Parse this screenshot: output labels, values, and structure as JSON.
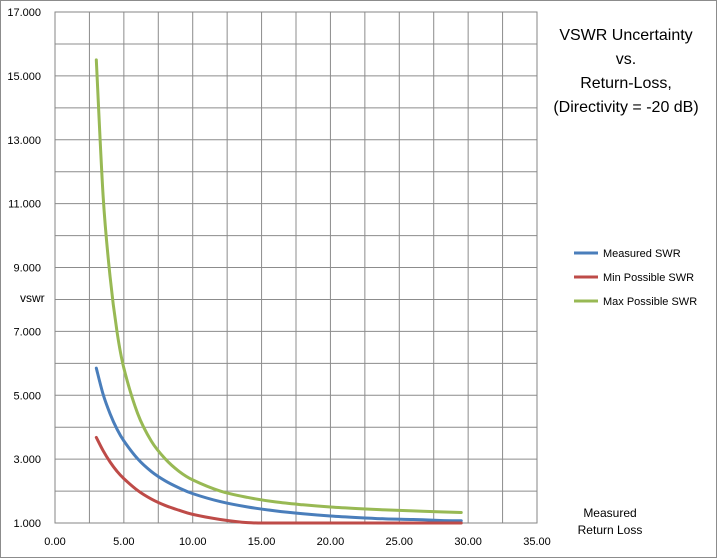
{
  "chart_data": {
    "type": "line",
    "title": [
      "VSWR Uncertainty",
      "vs.",
      "Return-Loss,",
      "(Directivity = -20 dB)"
    ],
    "xlabel": [
      "Measured",
      "Return Loss"
    ],
    "ylabel": "vswr",
    "xlim": [
      0,
      35
    ],
    "ylim": [
      1,
      17
    ],
    "x_ticks": [
      "0.00",
      "5.00",
      "10.00",
      "15.00",
      "20.00",
      "25.00",
      "30.00",
      "35.00"
    ],
    "y_ticks": [
      "1.000",
      "3.000",
      "5.000",
      "7.000",
      "9.000",
      "11.000",
      "13.000",
      "15.000",
      "17.000"
    ],
    "x_tick_values": [
      0,
      5,
      10,
      15,
      20,
      25,
      30,
      35
    ],
    "y_tick_values": [
      1,
      3,
      5,
      7,
      9,
      11,
      13,
      15,
      17
    ],
    "x_minor_step": 2.5,
    "y_minor_step": 1,
    "legend_position": "right",
    "x": [
      3,
      3.5,
      4,
      4.5,
      5,
      6,
      7,
      8,
      9,
      10,
      12,
      14,
      16,
      18,
      20,
      22,
      24,
      26,
      28,
      29.5
    ],
    "series": [
      {
        "name": "Measured SWR",
        "color": "#4A7EBB",
        "values": [
          5.85,
          5.02,
          4.42,
          3.94,
          3.57,
          3.01,
          2.61,
          2.32,
          2.1,
          1.92,
          1.67,
          1.5,
          1.38,
          1.29,
          1.22,
          1.17,
          1.13,
          1.11,
          1.08,
          1.07
        ]
      },
      {
        "name": "Min Possible SWR",
        "color": "#BE4B48",
        "values": [
          3.68,
          3.26,
          2.91,
          2.62,
          2.39,
          2.02,
          1.75,
          1.55,
          1.4,
          1.27,
          1.11,
          1.01,
          1.0,
          1.0,
          1.0,
          1.0,
          1.0,
          1.0,
          1.0,
          1.0
        ]
      },
      {
        "name": "Max Possible SWR",
        "color": "#98B954",
        "values": [
          15.5,
          11.2,
          8.71,
          7.0,
          5.85,
          4.43,
          3.56,
          3.01,
          2.62,
          2.35,
          2.0,
          1.8,
          1.66,
          1.57,
          1.5,
          1.45,
          1.41,
          1.38,
          1.35,
          1.33
        ]
      }
    ]
  }
}
